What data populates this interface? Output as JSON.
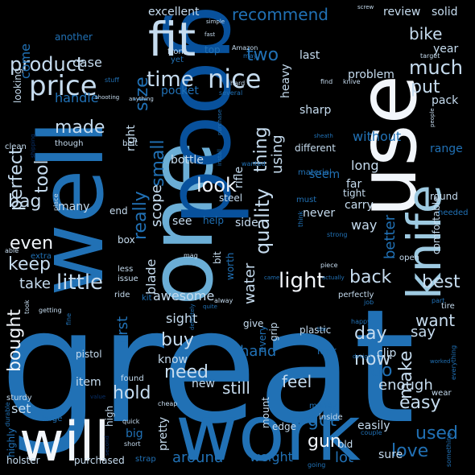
{
  "palette": {
    "white": "#f2f6fb",
    "pale": "#c6dcef",
    "light": "#9ecae1",
    "sky": "#6baed6",
    "mid": "#4292c6",
    "blue": "#2171b5",
    "deep": "#08519c",
    "navy": "#08306b"
  },
  "words": [
    {
      "text": "great",
      "size": 195,
      "tone": "blue",
      "rot": 0
    },
    {
      "text": "well",
      "size": 110,
      "tone": "blue",
      "rot": -90
    },
    {
      "text": "one",
      "size": 110,
      "tone": "sky",
      "rot": -90
    },
    {
      "text": "good",
      "size": 110,
      "tone": "deep",
      "rot": 90
    },
    {
      "text": "use",
      "size": 100,
      "tone": "white",
      "rot": -90
    },
    {
      "text": "work",
      "size": 95,
      "tone": "blue",
      "rot": 0
    },
    {
      "text": "will",
      "size": 68,
      "tone": "white",
      "rot": 0
    },
    {
      "text": "fit",
      "size": 58,
      "tone": "pale",
      "rot": 0
    },
    {
      "text": "knife",
      "size": 58,
      "tone": "light",
      "rot": -90
    },
    {
      "text": "price",
      "size": 34,
      "tone": "pale",
      "rot": 0
    },
    {
      "text": "product",
      "size": 24,
      "tone": "pale",
      "rot": 0
    },
    {
      "text": "time",
      "size": 26,
      "tone": "pale",
      "rot": 0
    },
    {
      "text": "nice",
      "size": 32,
      "tone": "pale",
      "rot": 0
    },
    {
      "text": "size",
      "size": 22,
      "tone": "blue",
      "rot": -90
    },
    {
      "text": "recommend",
      "size": 20,
      "tone": "blue",
      "rot": 0
    },
    {
      "text": "two",
      "size": 22,
      "tone": "blue",
      "rot": 0
    },
    {
      "text": "much",
      "size": 24,
      "tone": "pale",
      "rot": 0
    },
    {
      "text": "bike",
      "size": 20,
      "tone": "pale",
      "rot": 0
    },
    {
      "text": "put",
      "size": 22,
      "tone": "pale",
      "rot": 0
    },
    {
      "text": "made",
      "size": 22,
      "tone": "pale",
      "rot": 0
    },
    {
      "text": "perfect",
      "size": 22,
      "tone": "pale",
      "rot": -90
    },
    {
      "text": "tool",
      "size": 22,
      "tone": "pale",
      "rot": -90
    },
    {
      "text": "bag",
      "size": 22,
      "tone": "pale",
      "rot": 0
    },
    {
      "text": "small",
      "size": 22,
      "tone": "blue",
      "rot": -90
    },
    {
      "text": "thing",
      "size": 22,
      "tone": "pale",
      "rot": -90
    },
    {
      "text": "using",
      "size": 18,
      "tone": "pale",
      "rot": -90
    },
    {
      "text": "really",
      "size": 22,
      "tone": "blue",
      "rot": -90
    },
    {
      "text": "scope",
      "size": 18,
      "tone": "pale",
      "rot": -90
    },
    {
      "text": "look",
      "size": 24,
      "tone": "white",
      "rot": 0
    },
    {
      "text": "quality",
      "size": 24,
      "tone": "pale",
      "rot": -90
    },
    {
      "text": "little",
      "size": 26,
      "tone": "pale",
      "rot": 0
    },
    {
      "text": "light",
      "size": 26,
      "tone": "white",
      "rot": 0
    },
    {
      "text": "back",
      "size": 22,
      "tone": "pale",
      "rot": 0
    },
    {
      "text": "best",
      "size": 22,
      "tone": "pale",
      "rot": 0
    },
    {
      "text": "better",
      "size": 18,
      "tone": "blue",
      "rot": -90
    },
    {
      "text": "even",
      "size": 22,
      "tone": "white",
      "rot": 0
    },
    {
      "text": "keep",
      "size": 22,
      "tone": "pale",
      "rot": 0
    },
    {
      "text": "water",
      "size": 18,
      "tone": "pale",
      "rot": -90
    },
    {
      "text": "take",
      "size": 18,
      "tone": "pale",
      "rot": 0
    },
    {
      "text": "blade",
      "size": 16,
      "tone": "pale",
      "rot": -90
    },
    {
      "text": "awesome",
      "size": 16,
      "tone": "pale",
      "rot": 0
    },
    {
      "text": "bought",
      "size": 22,
      "tone": "white",
      "rot": -90
    },
    {
      "text": "first",
      "size": 18,
      "tone": "blue",
      "rot": -90
    },
    {
      "text": "buy",
      "size": 22,
      "tone": "pale",
      "rot": 0
    },
    {
      "text": "sight",
      "size": 16,
      "tone": "pale",
      "rot": 0
    },
    {
      "text": "day",
      "size": 22,
      "tone": "pale",
      "rot": 0
    },
    {
      "text": "now",
      "size": 22,
      "tone": "pale",
      "rot": 0
    },
    {
      "text": "want",
      "size": 20,
      "tone": "pale",
      "rot": 0
    },
    {
      "text": "say",
      "size": 18,
      "tone": "pale",
      "rot": 0
    },
    {
      "text": "make",
      "size": 22,
      "tone": "pale",
      "rot": -90
    },
    {
      "text": "go",
      "size": 22,
      "tone": "blue",
      "rot": 0
    },
    {
      "text": "hand",
      "size": 18,
      "tone": "blue",
      "rot": 0
    },
    {
      "text": "need",
      "size": 22,
      "tone": "pale",
      "rot": 0
    },
    {
      "text": "know",
      "size": 14,
      "tone": "pale",
      "rot": 0
    },
    {
      "text": "hold",
      "size": 22,
      "tone": "pale",
      "rot": 0
    },
    {
      "text": "feel",
      "size": 20,
      "tone": "pale",
      "rot": 0
    },
    {
      "text": "enough",
      "size": 18,
      "tone": "pale",
      "rot": 0
    },
    {
      "text": "easy",
      "size": 22,
      "tone": "pale",
      "rot": 0
    },
    {
      "text": "got",
      "size": 22,
      "tone": "blue",
      "rot": 0
    },
    {
      "text": "gun",
      "size": 22,
      "tone": "white",
      "rot": 0
    },
    {
      "text": "used",
      "size": 22,
      "tone": "blue",
      "rot": 0
    },
    {
      "text": "love",
      "size": 22,
      "tone": "blue",
      "rot": 0
    },
    {
      "text": "still",
      "size": 20,
      "tone": "pale",
      "rot": 0
    },
    {
      "text": "new",
      "size": 14,
      "tone": "pale",
      "rot": 0
    },
    {
      "text": "around",
      "size": 18,
      "tone": "blue",
      "rot": 0
    },
    {
      "text": "lot",
      "size": 18,
      "tone": "blue",
      "rot": 0
    },
    {
      "text": "weight",
      "size": 16,
      "tone": "blue",
      "rot": 0
    },
    {
      "text": "sure",
      "size": 14,
      "tone": "pale",
      "rot": 0
    },
    {
      "text": "set",
      "size": 16,
      "tone": "pale",
      "rot": 0
    },
    {
      "text": "excellent",
      "size": 14,
      "tone": "pale",
      "rot": 0
    },
    {
      "text": "case",
      "size": 16,
      "tone": "pale",
      "rot": 0
    },
    {
      "text": "come",
      "size": 16,
      "tone": "blue",
      "rot": -90
    },
    {
      "text": "another",
      "size": 12,
      "tone": "blue",
      "rot": 0
    },
    {
      "text": "handle",
      "size": 16,
      "tone": "blue",
      "rot": 0
    },
    {
      "text": "pocket",
      "size": 14,
      "tone": "blue",
      "rot": 0
    },
    {
      "text": "right",
      "size": 14,
      "tone": "pale",
      "rot": -90
    },
    {
      "text": "last",
      "size": 14,
      "tone": "pale",
      "rot": 0
    },
    {
      "text": "review",
      "size": 14,
      "tone": "pale",
      "rot": 0
    },
    {
      "text": "solid",
      "size": 14,
      "tone": "pale",
      "rot": 0
    },
    {
      "text": "year",
      "size": 14,
      "tone": "pale",
      "rot": 0
    },
    {
      "text": "problem",
      "size": 14,
      "tone": "pale",
      "rot": 0
    },
    {
      "text": "pack",
      "size": 14,
      "tone": "pale",
      "rot": 0
    },
    {
      "text": "sharp",
      "size": 14,
      "tone": "pale",
      "rot": 0
    },
    {
      "text": "without",
      "size": 16,
      "tone": "blue",
      "rot": 0
    },
    {
      "text": "long",
      "size": 16,
      "tone": "pale",
      "rot": 0
    },
    {
      "text": "range",
      "size": 14,
      "tone": "blue",
      "rot": 0
    },
    {
      "text": "far",
      "size": 14,
      "tone": "pale",
      "rot": 0
    },
    {
      "text": "seem",
      "size": 14,
      "tone": "blue",
      "rot": 0
    },
    {
      "text": "carry",
      "size": 14,
      "tone": "pale",
      "rot": 0
    },
    {
      "text": "way",
      "size": 16,
      "tone": "pale",
      "rot": 0
    },
    {
      "text": "comfortable",
      "size": 12,
      "tone": "pale",
      "rot": -90
    },
    {
      "text": "bottle",
      "size": 14,
      "tone": "pale",
      "rot": 0
    },
    {
      "text": "rifle",
      "size": 14,
      "tone": "pale",
      "rot": -90
    },
    {
      "text": "heavy",
      "size": 14,
      "tone": "pale",
      "rot": -90
    },
    {
      "text": "steel",
      "size": 12,
      "tone": "pale",
      "rot": 0
    },
    {
      "text": "see",
      "size": 14,
      "tone": "pale",
      "rot": 0
    },
    {
      "text": "side",
      "size": 14,
      "tone": "pale",
      "rot": 0
    },
    {
      "text": "never",
      "size": 14,
      "tone": "pale",
      "rot": 0
    },
    {
      "text": "many",
      "size": 14,
      "tone": "pale",
      "rot": 0
    },
    {
      "text": "looking",
      "size": 12,
      "tone": "pale",
      "rot": -90
    },
    {
      "text": "item",
      "size": 14,
      "tone": "pale",
      "rot": 0
    },
    {
      "text": "pistol",
      "size": 12,
      "tone": "pale",
      "rot": 0
    },
    {
      "text": "highly",
      "size": 12,
      "tone": "blue",
      "rot": -90
    },
    {
      "text": "holster",
      "size": 12,
      "tone": "pale",
      "rot": 0
    },
    {
      "text": "purchased",
      "size": 12,
      "tone": "pale",
      "rot": 0
    },
    {
      "text": "pretty",
      "size": 14,
      "tone": "pale",
      "rot": -90
    },
    {
      "text": "big",
      "size": 14,
      "tone": "blue",
      "rot": 0
    },
    {
      "text": "high",
      "size": 12,
      "tone": "pale",
      "rot": -90
    },
    {
      "text": "edge",
      "size": 12,
      "tone": "pale",
      "rot": 0
    },
    {
      "text": "mount",
      "size": 12,
      "tone": "pale",
      "rot": -90
    },
    {
      "text": "every",
      "size": 12,
      "tone": "blue",
      "rot": -90
    },
    {
      "text": "grip",
      "size": 12,
      "tone": "pale",
      "rot": -90
    },
    {
      "text": "easily",
      "size": 14,
      "tone": "pale",
      "rot": 0
    },
    {
      "text": "clip",
      "size": 14,
      "tone": "pale",
      "rot": 0
    },
    {
      "text": "old",
      "size": 12,
      "tone": "pale",
      "rot": 0
    },
    {
      "text": "plastic",
      "size": 12,
      "tone": "pale",
      "rot": 0
    },
    {
      "text": "give",
      "size": 12,
      "tone": "pale",
      "rot": 0
    },
    {
      "text": "lock",
      "size": 12,
      "tone": "blue",
      "rot": 0
    },
    {
      "text": "different",
      "size": 12,
      "tone": "pale",
      "rot": 0
    },
    {
      "text": "tight",
      "size": 12,
      "tone": "pale",
      "rot": 0
    },
    {
      "text": "round",
      "size": 12,
      "tone": "pale",
      "rot": 0
    },
    {
      "text": "end",
      "size": 12,
      "tone": "pale",
      "rot": 0
    },
    {
      "text": "box",
      "size": 12,
      "tone": "pale",
      "rot": 0
    },
    {
      "text": "bit",
      "size": 12,
      "tone": "pale",
      "rot": -90
    },
    {
      "text": "worth",
      "size": 12,
      "tone": "blue",
      "rot": -90
    },
    {
      "text": "help",
      "size": 12,
      "tone": "blue",
      "rot": 0
    },
    {
      "text": "wanted",
      "size": 8,
      "tone": "blue",
      "rot": 0
    },
    {
      "text": "must",
      "size": 10,
      "tone": "blue",
      "rot": 0
    },
    {
      "text": "material",
      "size": 10,
      "tone": "blue",
      "rot": 0
    },
    {
      "text": "strong",
      "size": 8,
      "tone": "blue",
      "rot": 0
    },
    {
      "text": "needed",
      "size": 10,
      "tone": "blue",
      "rot": 0
    },
    {
      "text": "open",
      "size": 10,
      "tone": "pale",
      "rot": 0
    },
    {
      "text": "piece",
      "size": 8,
      "tone": "pale",
      "rot": 0
    },
    {
      "text": "perfectly",
      "size": 10,
      "tone": "pale",
      "rot": 0
    },
    {
      "text": "job",
      "size": 8,
      "tone": "blue",
      "rot": 0
    },
    {
      "text": "tire",
      "size": 10,
      "tone": "pale",
      "rot": 0
    },
    {
      "text": "part",
      "size": 8,
      "tone": "blue",
      "rot": 0
    },
    {
      "text": "happy",
      "size": 8,
      "tone": "blue",
      "rot": 0
    },
    {
      "text": "design",
      "size": 7,
      "tone": "blue",
      "rot": 0
    },
    {
      "text": "worked",
      "size": 7,
      "tone": "blue",
      "rot": 0
    },
    {
      "text": "money",
      "size": 10,
      "tone": "blue",
      "rot": 0
    },
    {
      "text": "inside",
      "size": 10,
      "tone": "pale",
      "rot": 0
    },
    {
      "text": "wear",
      "size": 10,
      "tone": "pale",
      "rot": 0
    },
    {
      "text": "couple",
      "size": 8,
      "tone": "blue",
      "rot": 0
    },
    {
      "text": "going",
      "size": 8,
      "tone": "blue",
      "rot": 0
    },
    {
      "text": "something",
      "size": 8,
      "tone": "blue",
      "rot": -90
    },
    {
      "text": "everything",
      "size": 8,
      "tone": "blue",
      "rot": -90
    },
    {
      "text": "strap",
      "size": 10,
      "tone": "blue",
      "rot": 0
    },
    {
      "text": "short",
      "size": 8,
      "tone": "pale",
      "rot": 0
    },
    {
      "text": "second",
      "size": 7,
      "tone": "navy",
      "rot": -90
    },
    {
      "text": "quick",
      "size": 8,
      "tone": "pale",
      "rot": 0
    },
    {
      "text": "cheap",
      "size": 8,
      "tone": "pale",
      "rot": 0
    },
    {
      "text": "found",
      "size": 10,
      "tone": "pale",
      "rot": 0
    },
    {
      "text": "definitely",
      "size": 7,
      "tone": "blue",
      "rot": -90
    },
    {
      "text": "quite",
      "size": 7,
      "tone": "blue",
      "rot": 0
    },
    {
      "text": "alway",
      "size": 8,
      "tone": "pale",
      "rot": 0
    },
    {
      "text": "ride",
      "size": 10,
      "tone": "pale",
      "rot": 0
    },
    {
      "text": "kit",
      "size": 10,
      "tone": "blue",
      "rot": 0
    },
    {
      "text": "issue",
      "size": 10,
      "tone": "pale",
      "rot": 0
    },
    {
      "text": "less",
      "size": 10,
      "tone": "pale",
      "rot": 0
    },
    {
      "text": "mag",
      "size": 8,
      "tone": "pale",
      "rot": 0
    },
    {
      "text": "came",
      "size": 7,
      "tone": "blue",
      "rot": 0
    },
    {
      "text": "actually",
      "size": 7,
      "tone": "blue",
      "rot": 0
    },
    {
      "text": "fine",
      "size": 8,
      "tone": "blue",
      "rot": -90
    },
    {
      "text": "getting",
      "size": 8,
      "tone": "pale",
      "rot": 0
    },
    {
      "text": "took",
      "size": 8,
      "tone": "pale",
      "rot": -90
    },
    {
      "text": "durable",
      "size": 8,
      "tone": "blue",
      "rot": -90
    },
    {
      "text": "sturdy",
      "size": 10,
      "tone": "pale",
      "rot": 0
    },
    {
      "text": "large",
      "size": 10,
      "tone": "blue",
      "rot": 0
    },
    {
      "text": "extra",
      "size": 10,
      "tone": "blue",
      "rot": 0
    },
    {
      "text": "able",
      "size": 8,
      "tone": "pale",
      "rot": 0
    },
    {
      "text": "place",
      "size": 8,
      "tone": "pale",
      "rot": -90
    },
    {
      "text": "value",
      "size": 7,
      "tone": "navy",
      "rot": 0
    },
    {
      "text": "though",
      "size": 10,
      "tone": "pale",
      "rot": 0
    },
    {
      "text": "clean",
      "size": 10,
      "tone": "pale",
      "rot": 0
    },
    {
      "text": "shipping",
      "size": 7,
      "tone": "navy",
      "rot": -90
    },
    {
      "text": "stuff",
      "size": 8,
      "tone": "blue",
      "rot": 0
    },
    {
      "text": "shooting",
      "size": 7,
      "tone": "pale",
      "rot": 0
    },
    {
      "text": "front",
      "size": 10,
      "tone": "pale",
      "rot": 0
    },
    {
      "text": "yet",
      "size": 10,
      "tone": "blue",
      "rot": 0
    },
    {
      "text": "top",
      "size": 12,
      "tone": "blue",
      "rot": 0
    },
    {
      "text": "fast",
      "size": 7,
      "tone": "pale",
      "rot": 0
    },
    {
      "text": "Amazon",
      "size": 8,
      "tone": "pale",
      "rot": 0
    },
    {
      "text": "may",
      "size": 8,
      "tone": "blue",
      "rot": 0
    },
    {
      "text": "screw",
      "size": 7,
      "tone": "pale",
      "rot": 0
    },
    {
      "text": "target",
      "size": 8,
      "tone": "pale",
      "rot": 0
    },
    {
      "text": "hard",
      "size": 8,
      "tone": "pale",
      "rot": 0
    },
    {
      "text": "several",
      "size": 8,
      "tone": "blue",
      "rot": 0
    },
    {
      "text": "find",
      "size": 8,
      "tone": "pale",
      "rot": 0
    },
    {
      "text": "knive",
      "size": 8,
      "tone": "pale",
      "rot": 0
    },
    {
      "text": "people",
      "size": 7,
      "tone": "pale",
      "rot": -90
    },
    {
      "text": "anything",
      "size": 7,
      "tone": "pale",
      "rot": 0
    },
    {
      "text": "purchase",
      "size": 7,
      "tone": "blue",
      "rot": -90
    },
    {
      "text": "belt",
      "size": 10,
      "tone": "pale",
      "rot": 0
    },
    {
      "text": "simple",
      "size": 7,
      "tone": "pale",
      "rot": 0
    },
    {
      "text": "install",
      "size": 7,
      "tone": "blue",
      "rot": -90
    },
    {
      "text": "think",
      "size": 8,
      "tone": "blue",
      "rot": -90
    },
    {
      "text": "sheath",
      "size": 7,
      "tone": "blue",
      "rot": 0
    },
    {
      "text": "bar",
      "size": 7,
      "tone": "blue",
      "rot": 0
    }
  ]
}
